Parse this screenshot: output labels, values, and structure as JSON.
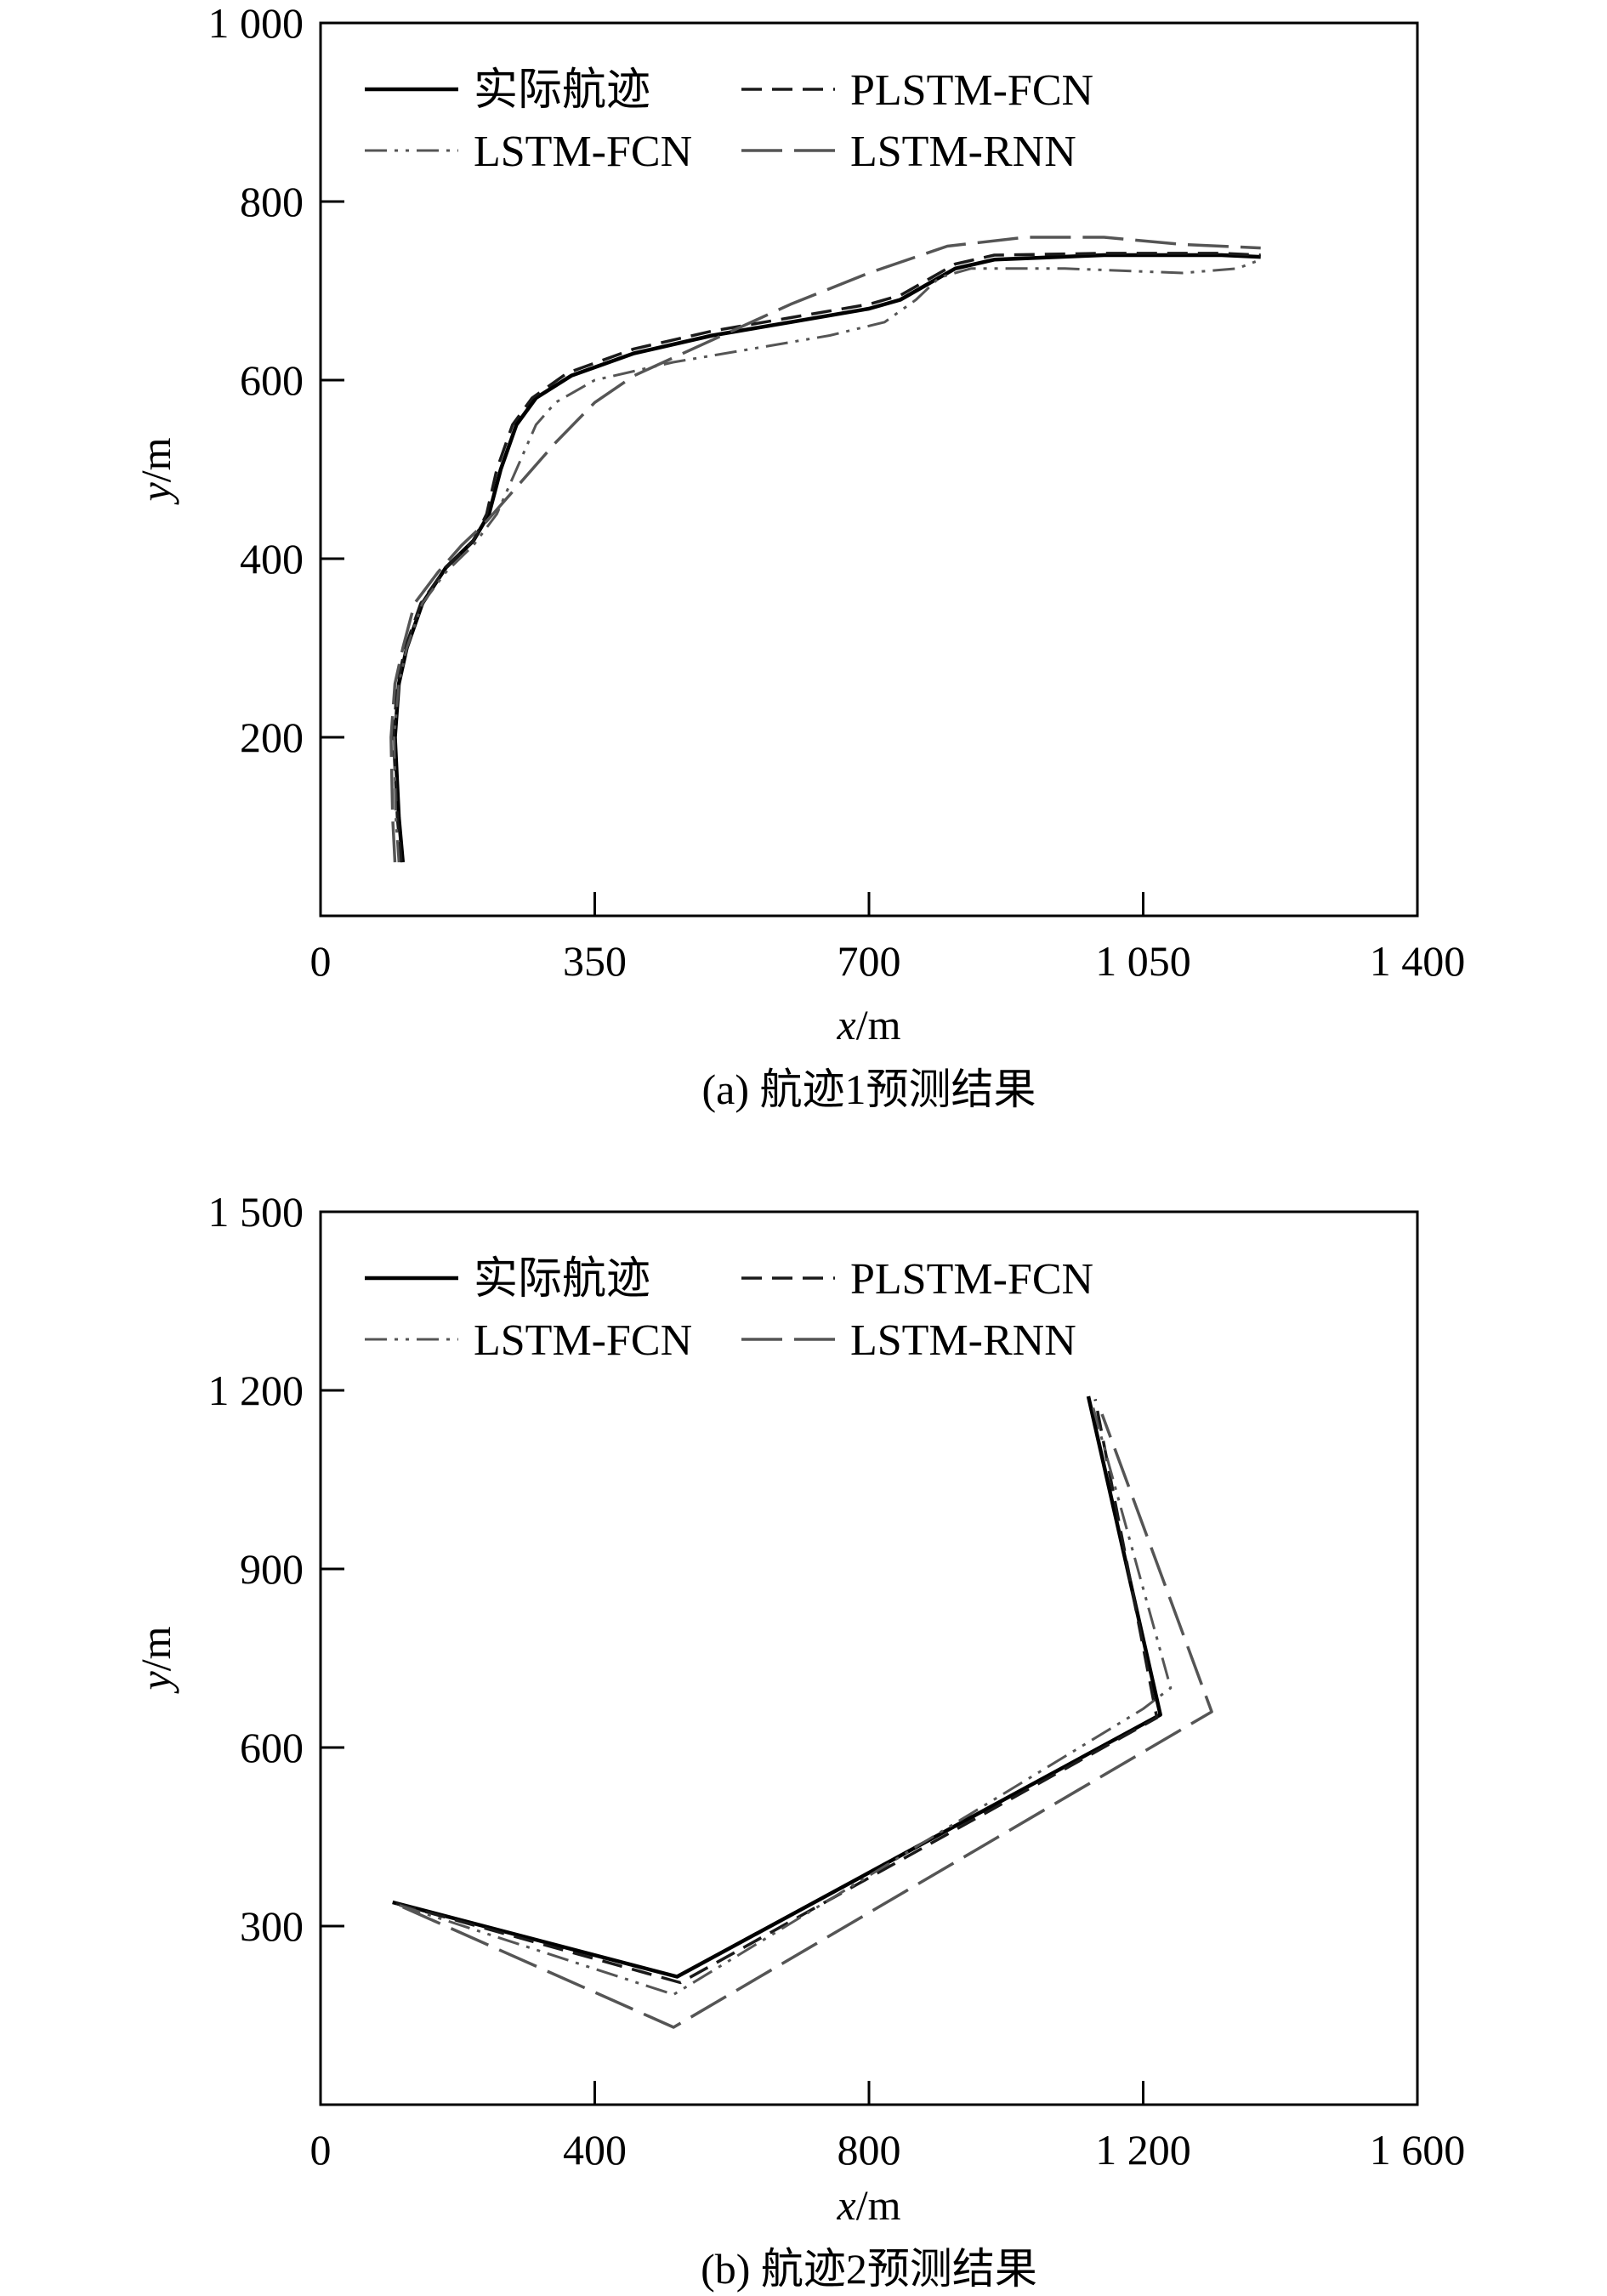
{
  "chart_data": [
    {
      "type": "line",
      "caption": "(a) 航迹1预测结果",
      "xlabel_var": "x",
      "xlabel_unit": "/m",
      "ylabel_var": "y",
      "ylabel_unit": "/m",
      "xlim": [
        0,
        1400
      ],
      "ylim": [
        0,
        1000
      ],
      "xticks": [
        {
          "value": 0,
          "label": "0"
        },
        {
          "value": 350,
          "label": "350"
        },
        {
          "value": 700,
          "label": "700"
        },
        {
          "value": 1050,
          "label": "1 050"
        },
        {
          "value": 1400,
          "label": "1 400"
        }
      ],
      "yticks": [
        {
          "value": 200,
          "label": "200"
        },
        {
          "value": 400,
          "label": "400"
        },
        {
          "value": 600,
          "label": "600"
        },
        {
          "value": 800,
          "label": "800"
        },
        {
          "value": 1000,
          "label": "1 000"
        }
      ],
      "legend": {
        "placement": "top-left",
        "columns": 2
      },
      "series": [
        {
          "name": "实际航迹",
          "color": "#000000",
          "dash": "solid",
          "points": [
            [
              105,
              60
            ],
            [
              100,
              110
            ],
            [
              95,
              200
            ],
            [
              100,
              260
            ],
            [
              110,
              300
            ],
            [
              130,
              350
            ],
            [
              160,
              390
            ],
            [
              195,
              420
            ],
            [
              215,
              450
            ],
            [
              230,
              500
            ],
            [
              250,
              550
            ],
            [
              275,
              580
            ],
            [
              320,
              605
            ],
            [
              400,
              630
            ],
            [
              500,
              650
            ],
            [
              600,
              665
            ],
            [
              700,
              680
            ],
            [
              740,
              690
            ],
            [
              780,
              710
            ],
            [
              810,
              725
            ],
            [
              860,
              735
            ],
            [
              1000,
              740
            ],
            [
              1150,
              740
            ],
            [
              1200,
              738
            ]
          ]
        },
        {
          "name": "PLSTM-FCN",
          "color": "#1a1a1a",
          "dash": "dashed",
          "points": [
            [
              103,
              60
            ],
            [
              98,
              110
            ],
            [
              93,
              200
            ],
            [
              98,
              260
            ],
            [
              108,
              300
            ],
            [
              128,
              350
            ],
            [
              160,
              390
            ],
            [
              195,
              420
            ],
            [
              212,
              450
            ],
            [
              225,
              500
            ],
            [
              245,
              550
            ],
            [
              270,
              580
            ],
            [
              315,
              608
            ],
            [
              400,
              635
            ],
            [
              500,
              655
            ],
            [
              600,
              670
            ],
            [
              700,
              685
            ],
            [
              740,
              695
            ],
            [
              780,
              715
            ],
            [
              810,
              730
            ],
            [
              860,
              740
            ],
            [
              1000,
              742
            ],
            [
              1150,
              742
            ],
            [
              1200,
              740
            ]
          ]
        },
        {
          "name": "LSTM-FCN",
          "color": "#555555",
          "dash": "dashdotdot",
          "points": [
            [
              100,
              60
            ],
            [
              96,
              110
            ],
            [
              94,
              200
            ],
            [
              100,
              260
            ],
            [
              110,
              300
            ],
            [
              130,
              350
            ],
            [
              160,
              385
            ],
            [
              195,
              415
            ],
            [
              225,
              450
            ],
            [
              250,
              500
            ],
            [
              275,
              550
            ],
            [
              300,
              575
            ],
            [
              350,
              600
            ],
            [
              450,
              620
            ],
            [
              550,
              635
            ],
            [
              650,
              650
            ],
            [
              720,
              665
            ],
            [
              760,
              690
            ],
            [
              790,
              715
            ],
            [
              830,
              725
            ],
            [
              950,
              725
            ],
            [
              1100,
              720
            ],
            [
              1170,
              725
            ],
            [
              1200,
              735
            ]
          ]
        },
        {
          "name": "LSTM-RNN",
          "color": "#555555",
          "dash": "longdash",
          "points": [
            [
              95,
              60
            ],
            [
              92,
              110
            ],
            [
              90,
              200
            ],
            [
              95,
              260
            ],
            [
              105,
              300
            ],
            [
              120,
              350
            ],
            [
              150,
              385
            ],
            [
              180,
              415
            ],
            [
              210,
              440
            ],
            [
              250,
              480
            ],
            [
              300,
              530
            ],
            [
              350,
              575
            ],
            [
              400,
              605
            ],
            [
              500,
              645
            ],
            [
              600,
              685
            ],
            [
              700,
              720
            ],
            [
              800,
              750
            ],
            [
              900,
              760
            ],
            [
              1000,
              760
            ],
            [
              1100,
              752
            ],
            [
              1200,
              748
            ]
          ]
        }
      ]
    },
    {
      "type": "line",
      "caption": "(b) 航迹2预测结果",
      "xlabel_var": "x",
      "xlabel_unit": "/m",
      "ylabel_var": "y",
      "ylabel_unit": "/m",
      "xlim": [
        0,
        1600
      ],
      "ylim": [
        0,
        1500
      ],
      "xticks": [
        {
          "value": 0,
          "label": "0"
        },
        {
          "value": 400,
          "label": "400"
        },
        {
          "value": 800,
          "label": "800"
        },
        {
          "value": 1200,
          "label": "1 200"
        },
        {
          "value": 1600,
          "label": "1 600"
        }
      ],
      "yticks": [
        {
          "value": 300,
          "label": "300"
        },
        {
          "value": 600,
          "label": "600"
        },
        {
          "value": 900,
          "label": "900"
        },
        {
          "value": 1200,
          "label": "1 200"
        },
        {
          "value": 1500,
          "label": "1 500"
        }
      ],
      "legend": {
        "placement": "top-left",
        "columns": 2
      },
      "series": [
        {
          "name": "实际航迹",
          "color": "#000000",
          "dash": "solid",
          "points": [
            [
              105,
              340
            ],
            [
              520,
              215
            ],
            [
              1225,
              655
            ],
            [
              1120,
              1190
            ]
          ]
        },
        {
          "name": "PLSTM-FCN",
          "color": "#1a1a1a",
          "dash": "dashed",
          "points": [
            [
              110,
              338
            ],
            [
              525,
              205
            ],
            [
              1220,
              650
            ],
            [
              1130,
              1185
            ]
          ]
        },
        {
          "name": "LSTM-FCN",
          "color": "#555555",
          "dash": "dashdotdot",
          "points": [
            [
              115,
              335
            ],
            [
              515,
              185
            ],
            [
              1200,
              665
            ],
            [
              1240,
              700
            ],
            [
              1125,
              1180
            ]
          ]
        },
        {
          "name": "LSTM-RNN",
          "color": "#555555",
          "dash": "longdash",
          "points": [
            [
              120,
              332
            ],
            [
              515,
              130
            ],
            [
              1300,
              660
            ],
            [
              1140,
              1160
            ]
          ]
        }
      ]
    }
  ]
}
